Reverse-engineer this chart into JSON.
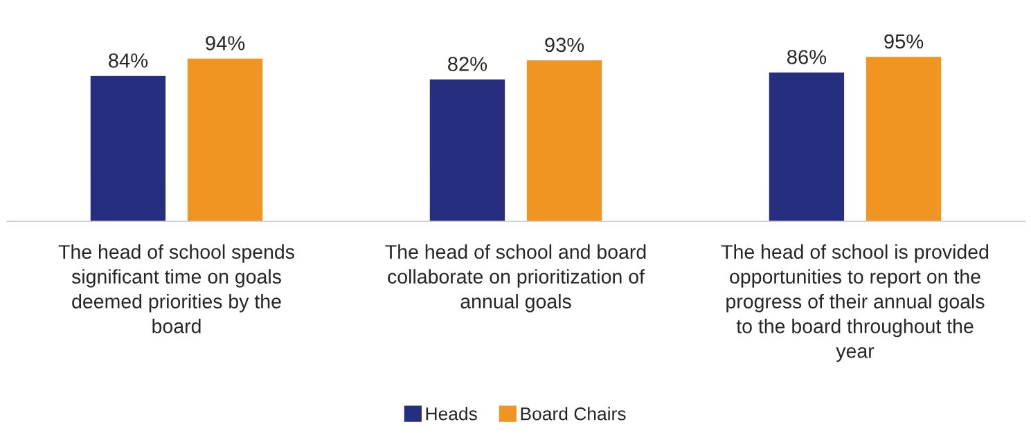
{
  "chart_data": {
    "type": "bar",
    "categories": [
      "The head of school spends\nsignificant time on goals\ndeemed priorities by the\nboard",
      "The head of school and board\ncollaborate on prioritization of\nannual goals",
      "The head of school is provided\nopportunities to report on the\nprogress of their annual goals\nto the board throughout the\nyear"
    ],
    "series": [
      {
        "name": "Heads",
        "color": "#262e80",
        "values": [
          84,
          82,
          86
        ],
        "value_labels": [
          "84%",
          "82%",
          "86%"
        ]
      },
      {
        "name": "Board Chairs",
        "color": "#f09422",
        "values": [
          94,
          93,
          95
        ],
        "value_labels": [
          "94%",
          "93%",
          "95%"
        ]
      }
    ],
    "grid": false,
    "legend": "bottom"
  }
}
